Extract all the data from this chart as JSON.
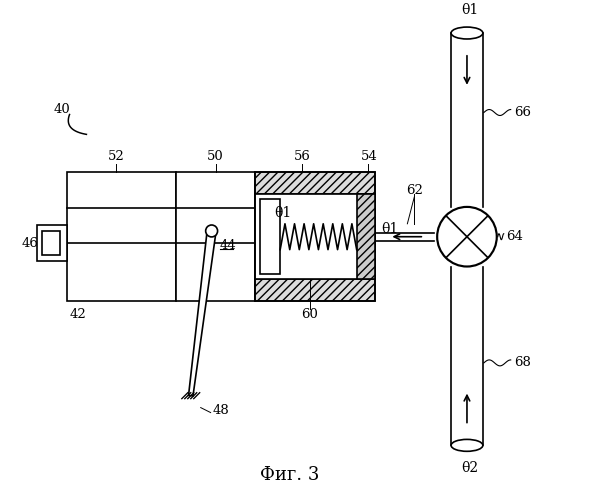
{
  "bg_color": "#ffffff",
  "line_color": "#000000",
  "fig_label": "Фиг. 3",
  "label_40": "40",
  "label_42": "42",
  "label_44": "44",
  "label_46": "46",
  "label_48": "48",
  "label_50": "50",
  "label_52": "52",
  "label_54": "54",
  "label_56": "56",
  "label_60": "60",
  "label_62": "62",
  "label_64": "64",
  "label_66": "66",
  "label_68": "68",
  "label_theta1_spring": "θ1",
  "label_theta1_line": "θ1",
  "label_theta1_top": "θ1",
  "label_theta2": "θ2"
}
